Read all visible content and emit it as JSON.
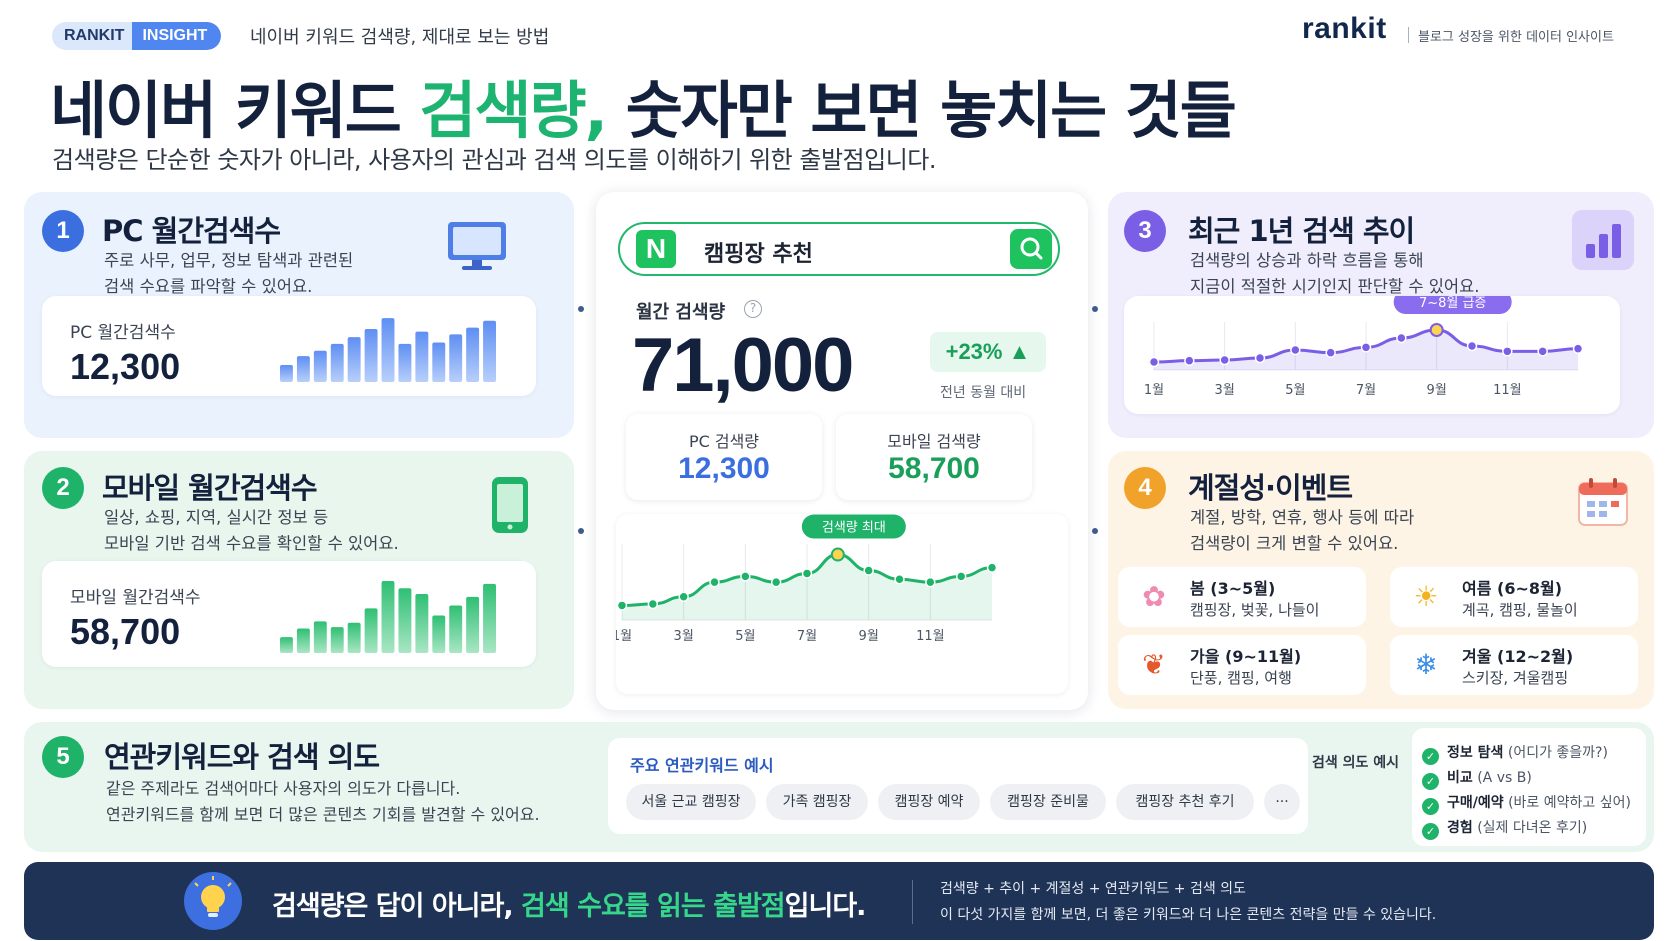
{
  "header": {
    "badge_left": "RANKIT",
    "badge_right": "INSIGHT",
    "subtitle": "네이버 키워드 검색량, 제대로 보는 방법",
    "brand": "rankit",
    "brand_tagline": "블로그 성장을 위한 데이터 인사이트",
    "title_part1": "네이버 키워드 ",
    "title_highlight": "검색량,",
    "title_part2": " 숫자만 보면 놓치는 것들",
    "lead": "검색량은 단순한 숫자가 아니라, 사용자의 관심과 검색 의도를 이해하기 위한 출발점입니다."
  },
  "colors": {
    "blue": "#3b6fe0",
    "green": "#1fb36a",
    "purple": "#7b5ee6",
    "orange": "#f1a22a",
    "navy": "#1f3356"
  },
  "pc_panel": {
    "number": "1",
    "title": "PC 월간검색수",
    "desc_lines": [
      "주로 사무, 업무, 정보 탐색과 관련된",
      "검색 수요를 파악할 수 있어요."
    ],
    "icon": "monitor-icon",
    "stat_label": "PC 월간검색수",
    "stat_value": "12,300",
    "bar_levels": [
      0.25,
      0.38,
      0.46,
      0.56,
      0.66,
      0.78,
      0.94,
      0.56,
      0.74,
      0.58,
      0.7,
      0.8,
      0.9
    ]
  },
  "mobile_panel": {
    "number": "2",
    "title": "모바일 월간검색수",
    "desc_lines": [
      "일상, 쇼핑, 지역, 실시간 정보 등",
      "모바일 기반 검색 수요를 확인할 수 있어요."
    ],
    "icon": "smartphone-icon",
    "stat_label": "모바일 월간검색수",
    "stat_value": "58,700",
    "bar_levels": [
      0.22,
      0.34,
      0.44,
      0.36,
      0.42,
      0.62,
      1.0,
      0.9,
      0.82,
      0.52,
      0.66,
      0.78,
      0.96
    ]
  },
  "trend_panel": {
    "number": "3",
    "title": "최근 1년 검색 추이",
    "desc_lines": [
      "검색량의 상승과 하락 흐름을 통해",
      "지금이 적절한 시기인지 판단할 수 있어요."
    ],
    "icon": "bar-chart-icon",
    "callout": "7~8월 급증",
    "x_labels": [
      "1월",
      "3월",
      "5월",
      "7월",
      "9월",
      "11월"
    ],
    "values": [
      12,
      14,
      15,
      18,
      30,
      26,
      34,
      48,
      60,
      36,
      28,
      28,
      32
    ]
  },
  "season_panel": {
    "number": "4",
    "title": "계절성·이벤트",
    "desc_lines": [
      "계절, 방학, 연휴, 행사 등에 따라",
      "검색량이 크게 변할 수 있어요."
    ],
    "icon": "calendar-icon",
    "seasons": [
      {
        "name": "봄 (3~5월)",
        "activities": "캠핑장, 벚꽃, 나들이",
        "icon": "flower-icon",
        "glyph": "✿",
        "color": "#f08ab0"
      },
      {
        "name": "여름 (6~8월)",
        "activities": "계곡, 캠핑, 물놀이",
        "icon": "sun-icon",
        "glyph": "☀",
        "color": "#f4b21f"
      },
      {
        "name": "가을 (9~11월)",
        "activities": "단풍, 캠핑, 여행",
        "icon": "maple-leaf-icon",
        "glyph": "❦",
        "color": "#e5582b"
      },
      {
        "name": "겨울 (12~2월)",
        "activities": "스키장, 겨울캠핑",
        "icon": "snowflake-icon",
        "glyph": "❄",
        "color": "#3b8de8"
      }
    ]
  },
  "center": {
    "search_logo": "N",
    "search_query": "캠핑장 추천",
    "monthly_label": "월간 검색량",
    "help_glyph": "?",
    "monthly_value": "71,000",
    "growth": "+23%",
    "growth_note": "전년 동월 대비",
    "pc_label": "PC 검색량",
    "pc_value": "12,300",
    "mobile_label": "모바일 검색량",
    "mobile_value": "58,700",
    "chart_callout": "검색량 최대",
    "x_labels": [
      "1월",
      "3월",
      "5월",
      "7월",
      "9월",
      "11월"
    ],
    "values": [
      10,
      11,
      16,
      26,
      30,
      26,
      32,
      45,
      34,
      28,
      26,
      30,
      36
    ]
  },
  "keywords_panel": {
    "number": "5",
    "title": "연관키워드와 검색 의도",
    "desc_lines": [
      "같은 주제라도 검색어마다 사용자의 의도가 다릅니다.",
      "연관키워드를 함께 보면 더 많은 콘텐츠 기회를 발견할 수 있어요."
    ],
    "related_title": "주요 연관키워드 예시",
    "chips": [
      "서울 근교 캠핑장",
      "가족 캠핑장",
      "캠핑장 예약",
      "캠핑장 준비물",
      "캠핑장 추천 후기",
      "···"
    ],
    "intent_label": "검색 의도 예시",
    "check_glyph": "✓",
    "intents": [
      {
        "name": "정보 탐색",
        "note": "(어디가 좋을까?)"
      },
      {
        "name": "비교",
        "note": "(A vs B)"
      },
      {
        "name": "구매/예약",
        "note": "(바로 예약하고 싶어)"
      },
      {
        "name": "경험",
        "note": "(실제 다녀온 후기)"
      }
    ]
  },
  "footer": {
    "main_part1": "검색량은 답이 아니라, ",
    "main_highlight": "검색 수요를 읽는 출발점",
    "main_part2": "입니다.",
    "right_line1": "검색량 + 추이 + 계절성 + 연관키워드 + 검색 의도",
    "right_line2": "이 다섯 가지를 함께 보면, 더 좋은 키워드와 더 나은 콘텐츠 전략을 만들 수 있습니다."
  }
}
